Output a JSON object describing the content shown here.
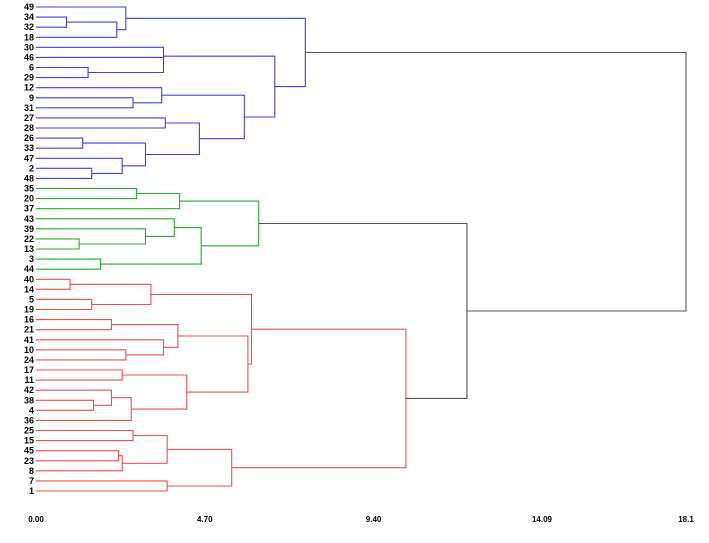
{
  "chart_data": {
    "type": "dendrogram",
    "title": "",
    "xlabel": "",
    "ylabel": "",
    "orientation": "horizontal",
    "xlim": [
      0,
      18.1
    ],
    "x_ticks": [
      {
        "value": 0,
        "label": "0.00"
      },
      {
        "value": 4.7,
        "label": "4.70"
      },
      {
        "value": 9.4,
        "label": "9.40"
      },
      {
        "value": 14.09,
        "label": "14.09"
      },
      {
        "value": 18.1,
        "label": "18.1"
      }
    ],
    "grid": false,
    "legend": "none",
    "leaves_top_to_bottom": [
      "49",
      "34",
      "32",
      "18",
      "30",
      "46",
      "6",
      "29",
      "12",
      "9",
      "31",
      "27",
      "28",
      "26",
      "33",
      "47",
      "2",
      "48",
      "35",
      "20",
      "37",
      "43",
      "39",
      "22",
      "13",
      "3",
      "44",
      "40",
      "14",
      "5",
      "19",
      "16",
      "21",
      "41",
      "10",
      "24",
      "17",
      "11",
      "42",
      "38",
      "4",
      "36",
      "25",
      "15",
      "45",
      "23",
      "8",
      "7",
      "1"
    ],
    "cluster_colors": {
      "blue": "#4040e0",
      "green": "#2ea82e",
      "red": "#e85050",
      "root": "#555555"
    },
    "merges": [
      {
        "a": "34",
        "b": "32",
        "height": 0.85,
        "color": "blue"
      },
      {
        "a": "L:34,32",
        "b": "18",
        "height": 2.25,
        "color": "blue"
      },
      {
        "a": "49",
        "b": "L:34,32,18",
        "height": 2.5,
        "color": "blue"
      },
      {
        "a": "6",
        "b": "29",
        "height": 1.45,
        "color": "blue"
      },
      {
        "a": "46",
        "b": "L:6,29",
        "height": 3.55,
        "color": "blue"
      },
      {
        "a": "30",
        "b": "L:46,6,29",
        "height": 3.55,
        "color": "blue"
      },
      {
        "a": "9",
        "b": "31",
        "height": 2.7,
        "color": "blue"
      },
      {
        "a": "12",
        "b": "L:9,31",
        "height": 3.5,
        "color": "blue"
      },
      {
        "a": "27",
        "b": "28",
        "height": 3.6,
        "color": "blue"
      },
      {
        "a": "26",
        "b": "33",
        "height": 1.3,
        "color": "blue"
      },
      {
        "a": "2",
        "b": "48",
        "height": 1.55,
        "color": "blue"
      },
      {
        "a": "47",
        "b": "L:2,48",
        "height": 2.4,
        "color": "blue"
      },
      {
        "a": "L:26,33",
        "b": "L:47,2,48",
        "height": 3.05,
        "color": "blue"
      },
      {
        "a": "L:27,28",
        "b": "L:26,33,47,2,48",
        "height": 4.55,
        "color": "blue"
      },
      {
        "a": "L:12,9,31",
        "b": "L:27,28,26,33,47,2,48",
        "height": 5.8,
        "color": "blue"
      },
      {
        "a": "L:30,46,6,29",
        "b": "L:12..48",
        "height": 6.65,
        "color": "blue"
      },
      {
        "a": "L:49,34,32,18",
        "b": "L:30..48",
        "height": 7.5,
        "color": "blue"
      },
      {
        "a": "35",
        "b": "20",
        "height": 2.8,
        "color": "green"
      },
      {
        "a": "L:35,20",
        "b": "37",
        "height": 4.0,
        "color": "green"
      },
      {
        "a": "22",
        "b": "13",
        "height": 1.2,
        "color": "green"
      },
      {
        "a": "39",
        "b": "L:22,13",
        "height": 3.05,
        "color": "green"
      },
      {
        "a": "43",
        "b": "L:39,22,13",
        "height": 3.85,
        "color": "green"
      },
      {
        "a": "3",
        "b": "44",
        "height": 1.8,
        "color": "green"
      },
      {
        "a": "L:43,39,22,13",
        "b": "L:3,44",
        "height": 4.6,
        "color": "green"
      },
      {
        "a": "L:35,20,37",
        "b": "L:43..44",
        "height": 6.2,
        "color": "green"
      },
      {
        "a": "40",
        "b": "14",
        "height": 0.95,
        "color": "red"
      },
      {
        "a": "5",
        "b": "19",
        "height": 1.55,
        "color": "red"
      },
      {
        "a": "L:40,14",
        "b": "L:5,19",
        "height": 3.2,
        "color": "red"
      },
      {
        "a": "16",
        "b": "21",
        "height": 2.1,
        "color": "red"
      },
      {
        "a": "10",
        "b": "24",
        "height": 2.5,
        "color": "red"
      },
      {
        "a": "41",
        "b": "L:10,24",
        "height": 3.55,
        "color": "red"
      },
      {
        "a": "L:16,21",
        "b": "L:41,10,24",
        "height": 3.95,
        "color": "red"
      },
      {
        "a": "17",
        "b": "11",
        "height": 2.4,
        "color": "red"
      },
      {
        "a": "38",
        "b": "4",
        "height": 1.6,
        "color": "red"
      },
      {
        "a": "42",
        "b": "L:38,4",
        "height": 2.1,
        "color": "red"
      },
      {
        "a": "L:42,38,4",
        "b": "36",
        "height": 2.65,
        "color": "red"
      },
      {
        "a": "L:17,11",
        "b": "L:42,38,4,36",
        "height": 4.2,
        "color": "red"
      },
      {
        "a": "L:16,21,41,10,24",
        "b": "L:17..36",
        "height": 5.9,
        "color": "red"
      },
      {
        "a": "L:40,14,5,19",
        "b": "L:16..36",
        "height": 6.0,
        "color": "red"
      },
      {
        "a": "25",
        "b": "15",
        "height": 2.7,
        "color": "red"
      },
      {
        "a": "45",
        "b": "23",
        "height": 2.3,
        "color": "red"
      },
      {
        "a": "L:45,23",
        "b": "8",
        "height": 2.4,
        "color": "red"
      },
      {
        "a": "L:25,15",
        "b": "L:45,23,8",
        "height": 3.65,
        "color": "red"
      },
      {
        "a": "7",
        "b": "1",
        "height": 3.65,
        "color": "red"
      },
      {
        "a": "L:25,15,45,23,8",
        "b": "L:7,1",
        "height": 5.45,
        "color": "red"
      },
      {
        "a": "L:40..36",
        "b": "L:25..1",
        "height": 10.3,
        "color": "red"
      },
      {
        "a": "L:green",
        "b": "L:red",
        "height": 12.0,
        "color": "root"
      },
      {
        "a": "L:blue",
        "b": "L:green+red",
        "height": 18.1,
        "color": "root"
      }
    ]
  }
}
